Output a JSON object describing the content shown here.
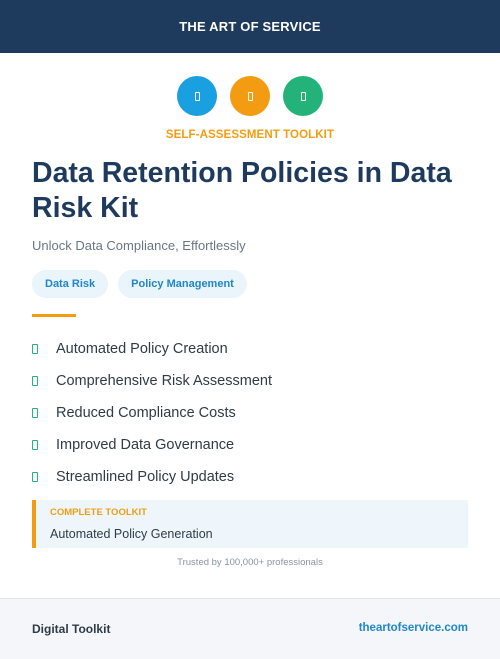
{
  "header": {
    "brand": "THE ART OF SERVICE"
  },
  "icons": [
    {
      "name": "blue-square-icon",
      "color": "#1a9fe0"
    },
    {
      "name": "orange-square-icon",
      "color": "#f39c12"
    },
    {
      "name": "green-square-icon",
      "color": "#23b27a"
    }
  ],
  "kicker": "SELF-ASSESSMENT TOOLKIT",
  "title": "Data Retention Policies in Data Risk Kit",
  "subtitle": "Unlock Data Compliance, Effortlessly",
  "tags": [
    "Data Risk",
    "Policy Management"
  ],
  "features": [
    "Automated Policy Creation",
    "Comprehensive Risk Assessment",
    "Reduced Compliance Costs",
    "Improved Data Governance",
    "Streamlined Policy Updates"
  ],
  "complete": {
    "label": "COMPLETE TOOLKIT",
    "value": "Automated Policy Generation"
  },
  "trusted": "Trusted by 100,000+ professionals",
  "footer": {
    "left": "Digital Toolkit",
    "right": "theartofservice.com"
  },
  "colors": {
    "navy": "#1e3a5c",
    "orange": "#f39c12",
    "blue": "#1f86c8",
    "green": "#23b27a"
  }
}
